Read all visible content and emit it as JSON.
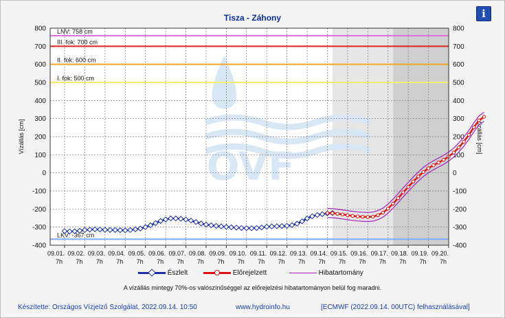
{
  "chart_data": {
    "type": "line",
    "title": "Tisza - Záhony",
    "ylabel_left": "Vízállás [cm]",
    "ylabel_right": "Vízállás [cm]",
    "ylim": [
      -400,
      800
    ],
    "yticks": [
      -400,
      -300,
      -200,
      -100,
      0,
      100,
      200,
      300,
      400,
      500,
      600,
      700,
      800
    ],
    "x_tick_dates": [
      "09.01.",
      "09.02.",
      "09.03.",
      "09.04.",
      "09.05.",
      "09.06.",
      "09.07.",
      "09.08.",
      "09.09.",
      "09.10.",
      "09.11.",
      "09.12.",
      "09.13.",
      "09.14.",
      "09.15.",
      "09.16.",
      "09.17.",
      "09.18.",
      "09.19.",
      "09.20."
    ],
    "x_tick_hour": "7h",
    "grid": true,
    "thresholds": [
      {
        "label": "LNV: 758 cm",
        "value": 758,
        "color": "#e070e0"
      },
      {
        "label": "III. fok: 700 cm",
        "value": 700,
        "color": "#e02020"
      },
      {
        "label": "II. fok: 600 cm",
        "value": 600,
        "color": "#f0a820"
      },
      {
        "label": "I. fok: 500 cm",
        "value": 500,
        "color": "#f0f070"
      },
      {
        "label": "LKV: -367 cm",
        "value": -367,
        "color": "#7fa8ff"
      }
    ],
    "observed": {
      "name": "Észlelt",
      "color": "#1a2fa8",
      "points": [
        [
          0,
          -322
        ],
        [
          0.25,
          -324
        ],
        [
          0.5,
          -323
        ],
        [
          0.75,
          -320
        ],
        [
          1,
          -316
        ],
        [
          1.25,
          -314
        ],
        [
          1.5,
          -312
        ],
        [
          1.75,
          -313
        ],
        [
          2,
          -315
        ],
        [
          2.25,
          -316
        ],
        [
          2.5,
          -316
        ],
        [
          2.75,
          -317
        ],
        [
          3,
          -318
        ],
        [
          3.25,
          -316
        ],
        [
          3.5,
          -312
        ],
        [
          3.75,
          -308
        ],
        [
          4,
          -300
        ],
        [
          4.25,
          -290
        ],
        [
          4.5,
          -278
        ],
        [
          4.75,
          -266
        ],
        [
          5,
          -258
        ],
        [
          5.25,
          -252
        ],
        [
          5.5,
          -252
        ],
        [
          5.75,
          -254
        ],
        [
          6,
          -258
        ],
        [
          6.25,
          -264
        ],
        [
          6.5,
          -272
        ],
        [
          6.75,
          -280
        ],
        [
          7,
          -286
        ],
        [
          7.25,
          -290
        ],
        [
          7.5,
          -293
        ],
        [
          7.75,
          -296
        ],
        [
          8,
          -299
        ],
        [
          8.25,
          -301
        ],
        [
          8.5,
          -303
        ],
        [
          8.75,
          -305
        ],
        [
          9,
          -306
        ],
        [
          9.25,
          -306
        ],
        [
          9.5,
          -305
        ],
        [
          9.75,
          -302
        ],
        [
          10,
          -298
        ],
        [
          10.25,
          -296
        ],
        [
          10.5,
          -295
        ],
        [
          10.75,
          -294
        ],
        [
          11,
          -293
        ],
        [
          11.25,
          -289
        ],
        [
          11.5,
          -281
        ],
        [
          11.75,
          -268
        ],
        [
          12,
          -252
        ],
        [
          12.25,
          -240
        ],
        [
          12.5,
          -233
        ],
        [
          12.75,
          -228
        ],
        [
          13,
          -224
        ],
        [
          13.25,
          -222
        ]
      ]
    },
    "forecast": {
      "name": "Előrejelzett",
      "color": "#e01010",
      "points": [
        [
          13,
          -222
        ],
        [
          13.25,
          -223
        ],
        [
          13.5,
          -226
        ],
        [
          13.75,
          -230
        ],
        [
          14,
          -234
        ],
        [
          14.25,
          -238
        ],
        [
          14.5,
          -241
        ],
        [
          14.75,
          -243
        ],
        [
          15,
          -244
        ],
        [
          15.25,
          -242
        ],
        [
          15.5,
          -234
        ],
        [
          15.75,
          -220
        ],
        [
          16,
          -198
        ],
        [
          16.25,
          -170
        ],
        [
          16.5,
          -140
        ],
        [
          16.75,
          -108
        ],
        [
          17,
          -78
        ],
        [
          17.25,
          -48
        ],
        [
          17.5,
          -20
        ],
        [
          17.75,
          5
        ],
        [
          18,
          25
        ],
        [
          18.25,
          42
        ],
        [
          18.5,
          57
        ],
        [
          18.75,
          72
        ],
        [
          19,
          90
        ],
        [
          19.25,
          112
        ],
        [
          19.5,
          140
        ],
        [
          19.75,
          172
        ],
        [
          20,
          210
        ],
        [
          20.25,
          252
        ],
        [
          20.5,
          290
        ],
        [
          20.75,
          310
        ]
      ]
    },
    "error_band": {
      "name": "Hibatartomány",
      "color": "#a020c0",
      "upper_offset": 25,
      "lower_offset": 25
    },
    "shaded_regions": [
      {
        "from": 13.25,
        "to": 16.25,
        "color": "#e6e6e6"
      },
      {
        "from": 16.25,
        "to": 20.85,
        "color": "#cfcfcf"
      }
    ],
    "watermark": "OVF"
  },
  "legend": {
    "observed": "Észlelt",
    "forecast": "Előrejelzett",
    "band": "Hibatartomány"
  },
  "note": "A vízállás mintegy 70%-os valószínűséggel az előrejelzési hibatartományon belül fog maradni.",
  "footer": {
    "made_by": "Készítette: Országos Vízjelző Szolgálat, 2022.09.14. 10:50",
    "website": "www.hydroinfo.hu",
    "source": "[ECMWF (2022.09.14. 00UTC) felhasználásával]"
  },
  "info_button": "i"
}
